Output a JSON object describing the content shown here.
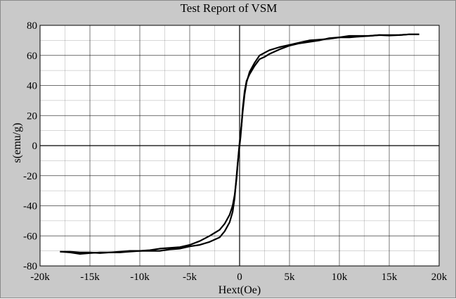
{
  "chart_data": {
    "type": "line",
    "title": "Test Report of VSM",
    "xlabel": "Hext(Oe)",
    "ylabel": "s(emu/g)",
    "xlim": [
      -20000,
      20000
    ],
    "ylim": [
      -80,
      80
    ],
    "grid": true,
    "x_ticks": [
      -20000,
      -15000,
      -10000,
      -5000,
      0,
      5000,
      10000,
      15000,
      20000
    ],
    "x_tick_labels": [
      "-20k",
      "-15k",
      "-10k",
      "-5k",
      "0",
      "5k",
      "10k",
      "15k",
      "20k"
    ],
    "y_ticks": [
      80,
      60,
      40,
      20,
      0,
      -20,
      -40,
      -60,
      -80
    ],
    "y_tick_labels": [
      "80",
      "60",
      "40",
      "20",
      "0",
      "-20",
      "-40",
      "-60",
      "-80"
    ],
    "colors": {
      "frame": "#c9c9c9",
      "plot_bg": "#ffffff",
      "grid": "#000000",
      "curve": "#000000"
    },
    "series": [
      {
        "x": [
          18000,
          17000,
          16000,
          15000,
          14000,
          13000,
          12000,
          11000,
          10000,
          9000,
          8000,
          7000,
          6000,
          5000,
          4000,
          3000,
          2500,
          2000,
          1500,
          1000,
          700,
          500,
          300,
          200,
          100,
          0,
          -100,
          -200,
          -300,
          -500,
          -700,
          -1000,
          -1500,
          -2000,
          -3000,
          -4000,
          -5000,
          -6000,
          -7000,
          -8000,
          -9000,
          -10000,
          -11000,
          -12000,
          -13000,
          -14000,
          -15000,
          -16000,
          -17000,
          -18000
        ],
        "y": [
          74,
          74,
          73.5,
          73.2,
          73.5,
          73,
          72.5,
          72,
          72,
          71.5,
          70,
          69,
          68,
          66.5,
          64,
          61,
          59,
          57.5,
          53,
          47.5,
          43,
          36,
          24,
          14,
          6,
          0,
          -6,
          -12,
          -20,
          -35,
          -44,
          -51,
          -57,
          -61,
          -64,
          -66,
          -67,
          -68.5,
          -69,
          -70,
          -70,
          -70,
          -70.5,
          -71,
          -71,
          -71.5,
          -71,
          -71,
          -70.5,
          -70.5
        ]
      },
      {
        "x": [
          -18000,
          -17000,
          -16000,
          -15000,
          -14000,
          -13000,
          -12000,
          -11000,
          -10000,
          -9000,
          -8000,
          -7000,
          -6000,
          -5000,
          -4000,
          -3000,
          -2500,
          -2000,
          -1500,
          -1000,
          -700,
          -500,
          -300,
          -200,
          -100,
          0,
          100,
          200,
          300,
          500,
          700,
          1000,
          1500,
          2000,
          3000,
          4000,
          5000,
          6000,
          7000,
          8000,
          9000,
          10000,
          11000,
          12000,
          13000,
          14000,
          15000,
          16000,
          17000,
          18000
        ],
        "y": [
          -70.5,
          -71,
          -72,
          -71.5,
          -71,
          -71,
          -70.5,
          -70,
          -70,
          -69.5,
          -68.5,
          -68,
          -67.5,
          -66,
          -63.5,
          -60,
          -58,
          -56,
          -52,
          -46,
          -40,
          -33,
          -22,
          -13,
          -5,
          2,
          8,
          14,
          22,
          34,
          42,
          49,
          55,
          60,
          63.5,
          65.5,
          67,
          68.5,
          70,
          70.5,
          71,
          72,
          73,
          73,
          73,
          73.5,
          73.5,
          73.5,
          74,
          74
        ]
      }
    ]
  }
}
